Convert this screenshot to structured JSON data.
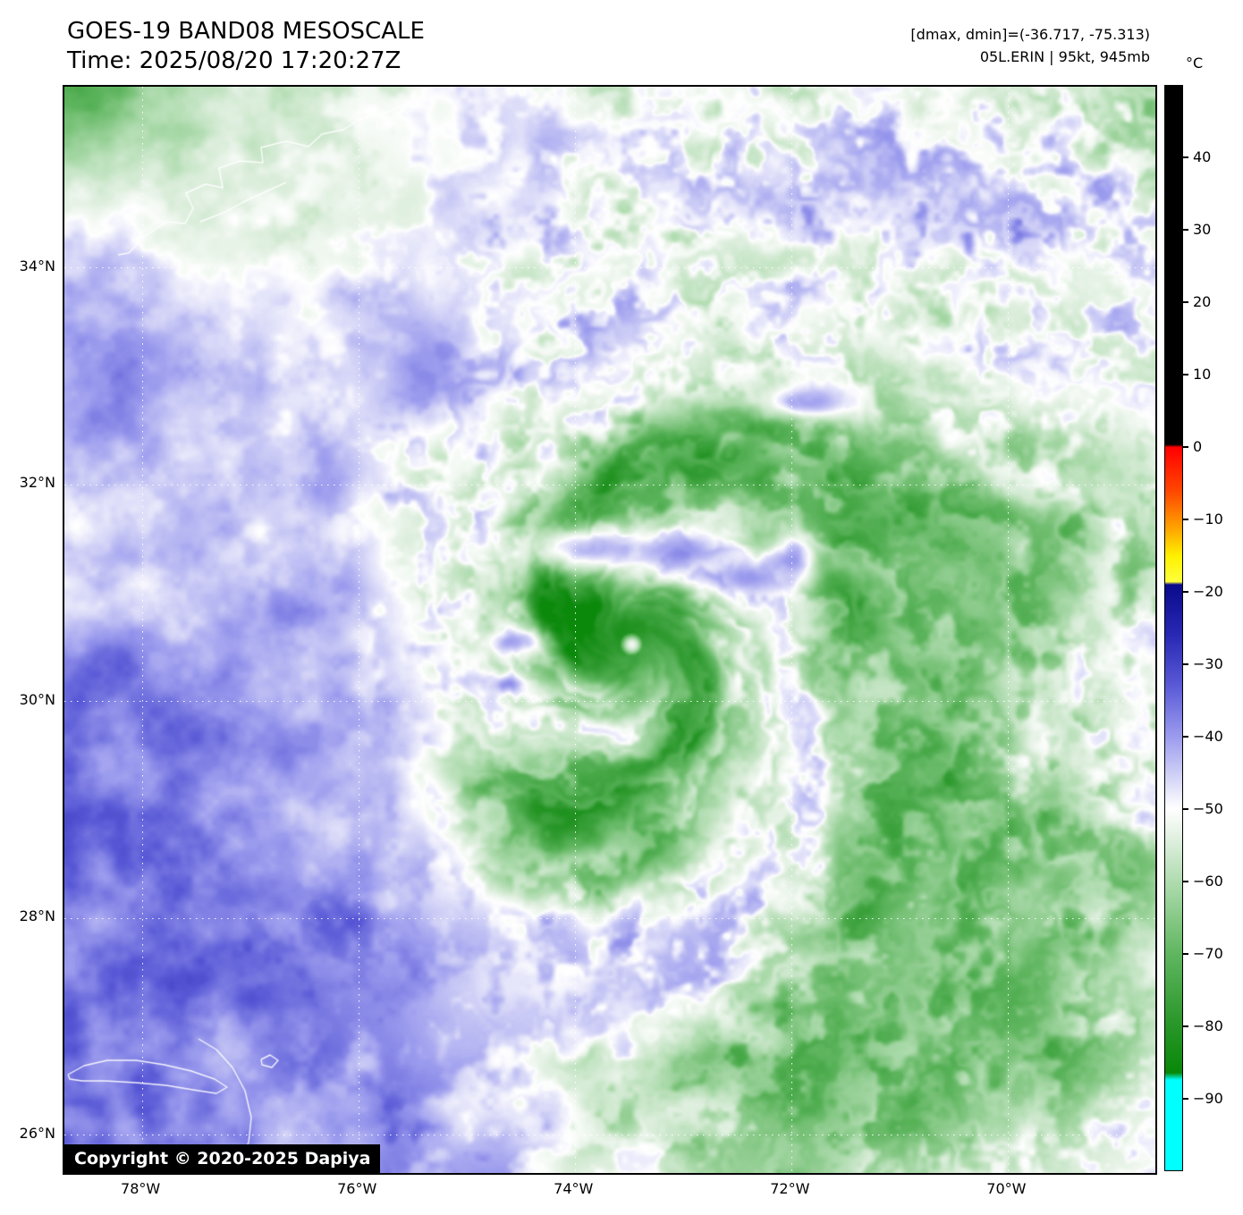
{
  "header": {
    "title": "GOES-19 BAND08 MESOSCALE",
    "time": "Time: 2025/08/20 17:20:27Z",
    "dmax_dmin": "[dmax, dmin]=(-36.717, -75.313)",
    "storm_info": "05L.ERIN | 95kt, 945mb"
  },
  "map": {
    "copyright": "Copyright © 2020-2025 Dapiya",
    "lat_ticks": [
      {
        "value": 34,
        "label": "34°N"
      },
      {
        "value": 32,
        "label": "32°N"
      },
      {
        "value": 30,
        "label": "30°N"
      },
      {
        "value": 28,
        "label": "28°N"
      },
      {
        "value": 26,
        "label": "26°N"
      }
    ],
    "lon_ticks": [
      {
        "value": -78,
        "label": "78°W"
      },
      {
        "value": -76,
        "label": "76°W"
      },
      {
        "value": -74,
        "label": "74°W"
      },
      {
        "value": -72,
        "label": "72°W"
      },
      {
        "value": -70,
        "label": "70°W"
      }
    ]
  },
  "colorbar": {
    "unit": "°C",
    "scale_max": 50,
    "scale_min": -100,
    "ticks": [
      {
        "value": 40,
        "label": "40"
      },
      {
        "value": 30,
        "label": "30"
      },
      {
        "value": 20,
        "label": "20"
      },
      {
        "value": 10,
        "label": "10"
      },
      {
        "value": 0,
        "label": "0"
      },
      {
        "value": -10,
        "label": "−10"
      },
      {
        "value": -20,
        "label": "−20"
      },
      {
        "value": -30,
        "label": "−30"
      },
      {
        "value": -40,
        "label": "−40"
      },
      {
        "value": -50,
        "label": "−50"
      },
      {
        "value": -60,
        "label": "−60"
      },
      {
        "value": -70,
        "label": "−70"
      },
      {
        "value": -80,
        "label": "−80"
      },
      {
        "value": -90,
        "label": "−90"
      }
    ],
    "stops": [
      [
        50,
        "#000000"
      ],
      [
        0.4,
        "#000000"
      ],
      [
        0,
        "#ff0000"
      ],
      [
        -6,
        "#ff4600"
      ],
      [
        -11,
        "#ffa000"
      ],
      [
        -15,
        "#fff000"
      ],
      [
        -18.6,
        "#ffff3c"
      ],
      [
        -19,
        "#0a0a8c"
      ],
      [
        -26,
        "#2828b4"
      ],
      [
        -33,
        "#5a5ad7"
      ],
      [
        -40,
        "#9b9bee"
      ],
      [
        -46,
        "#d7d7f8"
      ],
      [
        -50,
        "#ffffff"
      ],
      [
        -54,
        "#e1f0e1"
      ],
      [
        -60,
        "#b0dcb0"
      ],
      [
        -70,
        "#60b660"
      ],
      [
        -80,
        "#289628"
      ],
      [
        -86.5,
        "#088808"
      ],
      [
        -87.5,
        "#00ffff"
      ],
      [
        -100,
        "#00ffff"
      ]
    ]
  }
}
